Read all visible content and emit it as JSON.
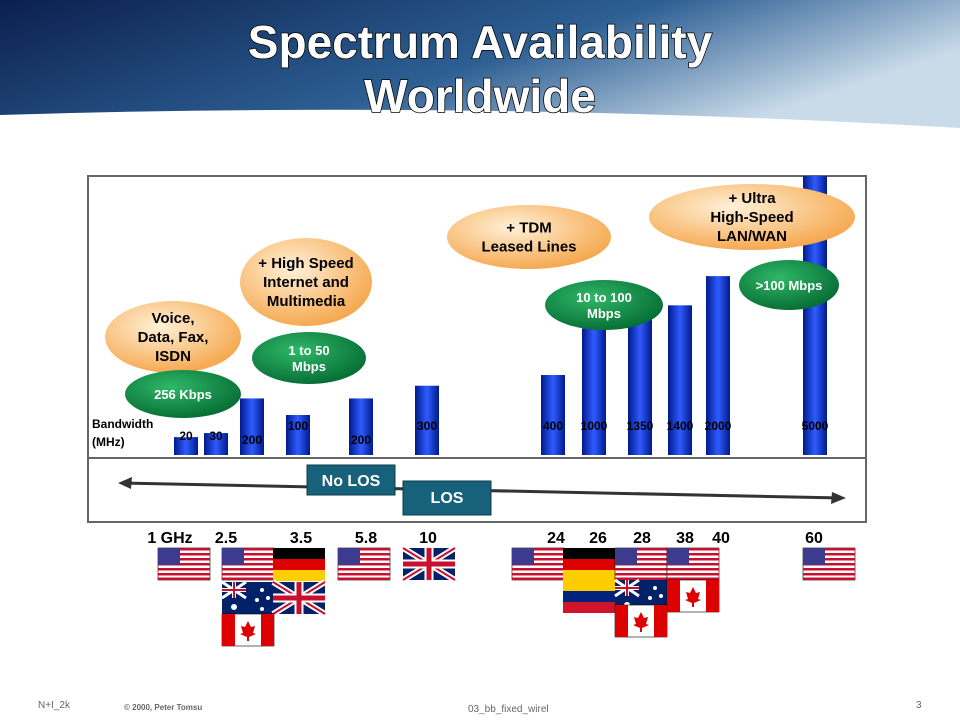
{
  "title": [
    "Spectrum Availability",
    "Worldwide"
  ],
  "bandwidth_label": [
    "Bandwidth",
    "(MHz)"
  ],
  "bars": [
    {
      "label": "20",
      "value": 20
    },
    {
      "label": "30",
      "value": 30
    },
    {
      "label": "200",
      "value": 200
    },
    {
      "label": "100",
      "value": 100
    },
    {
      "label": "200",
      "value": 200
    },
    {
      "label": "300",
      "value": 300
    },
    {
      "label": "400",
      "value": 400
    },
    {
      "label": "1000",
      "value": 1000
    },
    {
      "label": "1350",
      "value": 1350
    },
    {
      "label": "1400",
      "value": 1400
    },
    {
      "label": "2000",
      "value": 2000
    },
    {
      "label": "5000",
      "value": 5000
    }
  ],
  "frequencies": [
    "1 GHz",
    "2.5",
    "3.5",
    "5.8",
    "10",
    "24",
    "26",
    "28",
    "38",
    "40",
    "60"
  ],
  "services": [
    {
      "lines": [
        "Voice,",
        "Data, Fax,",
        "ISDN"
      ],
      "rate": "256 Kbps"
    },
    {
      "lines": [
        "+ High Speed",
        "Internet and",
        "Multimedia"
      ],
      "rate": [
        "1 to 50",
        "Mbps"
      ]
    },
    {
      "lines": [
        "+ TDM",
        "Leased Lines"
      ],
      "rate": [
        "10 to 100",
        "Mbps"
      ]
    },
    {
      "lines": [
        "+ Ultra",
        "High-Speed",
        "LAN/WAN"
      ],
      "rate": ">100 Mbps"
    }
  ],
  "no_los": "No LOS",
  "los": "LOS",
  "footer": {
    "left": "N+I_2k",
    "copyright": "© 2000, Peter Tomsu",
    "file": "03_bb_fixed_wirel",
    "page": "3"
  }
}
